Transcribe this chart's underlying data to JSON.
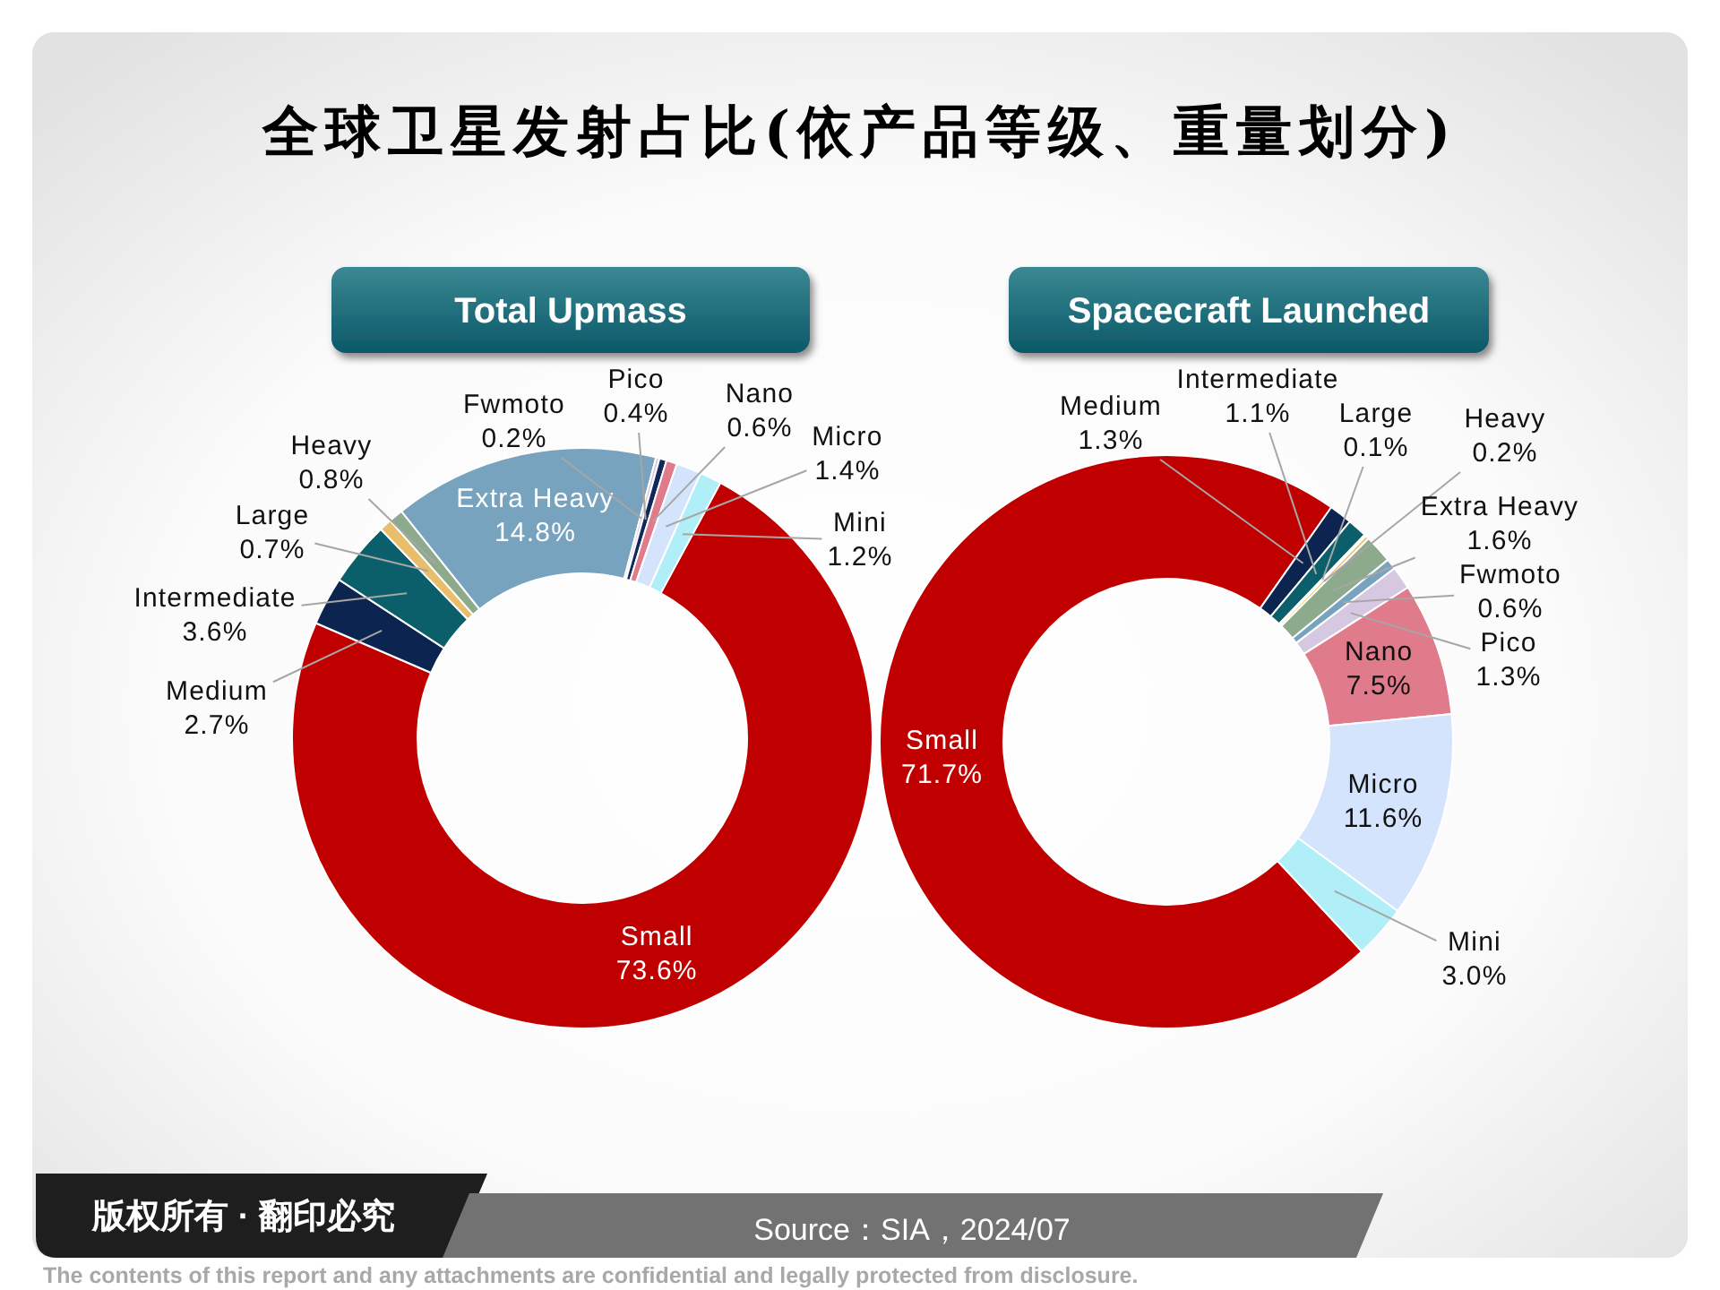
{
  "chart_data": [
    {
      "type": "other",
      "title": "全球卫星发射占比(依产品等级、重量划分)",
      "annotations": [
        "版权所有 · 翻印必究",
        "Source：SIA，2024/07",
        "The contents of this report and any attachments are confidential and legally protected from disclosure."
      ]
    },
    {
      "type": "donut",
      "title": "Total Upmass",
      "categories": [
        "Small",
        "Medium",
        "Intermediate",
        "Large",
        "Heavy",
        "Extra Heavy",
        "Fwmoto",
        "Pico",
        "Nano",
        "Micro",
        "Mini"
      ],
      "values": [
        73.6,
        2.7,
        3.6,
        0.7,
        0.8,
        14.8,
        0.2,
        0.4,
        0.6,
        1.4,
        1.2
      ],
      "colors": [
        "#c00000",
        "#0c2450",
        "#0b5f6a",
        "#e8be6a",
        "#8eaa8c",
        "#77a3bf",
        "#d6c8e0",
        "#10285a",
        "#e07b8c",
        "#d4e4fc",
        "#b0eef8"
      ],
      "value_labels": [
        "73.6%",
        "2.7%",
        "3.6%",
        "0.7%",
        "0.8%",
        "14.8%",
        "0.2%",
        "0.4%",
        "0.6%",
        "1.4%",
        "1.2%"
      ]
    },
    {
      "type": "donut",
      "title": "Spacecraft Launched",
      "categories": [
        "Small",
        "Medium",
        "Intermediate",
        "Large",
        "Heavy",
        "Extra Heavy",
        "Fwmoto",
        "Pico",
        "Nano",
        "Micro",
        "Mini"
      ],
      "values": [
        71.7,
        1.3,
        1.1,
        0.1,
        0.2,
        1.6,
        0.6,
        1.3,
        7.5,
        11.6,
        3.0
      ],
      "colors": [
        "#c00000",
        "#0c2450",
        "#0b5f6a",
        "#f0d890",
        "#e6bf6a",
        "#8eaa8c",
        "#77a3bf",
        "#d6c8e0",
        "#e07b8c",
        "#d4e4fc",
        "#b0eef8"
      ],
      "value_labels": [
        "71.7%",
        "1.3%",
        "1.1%",
        "0.1%",
        "0.2%",
        "1.6%",
        "0.6%",
        "1.3%",
        "7.5%",
        "11.6%",
        "3.0%"
      ]
    }
  ]
}
